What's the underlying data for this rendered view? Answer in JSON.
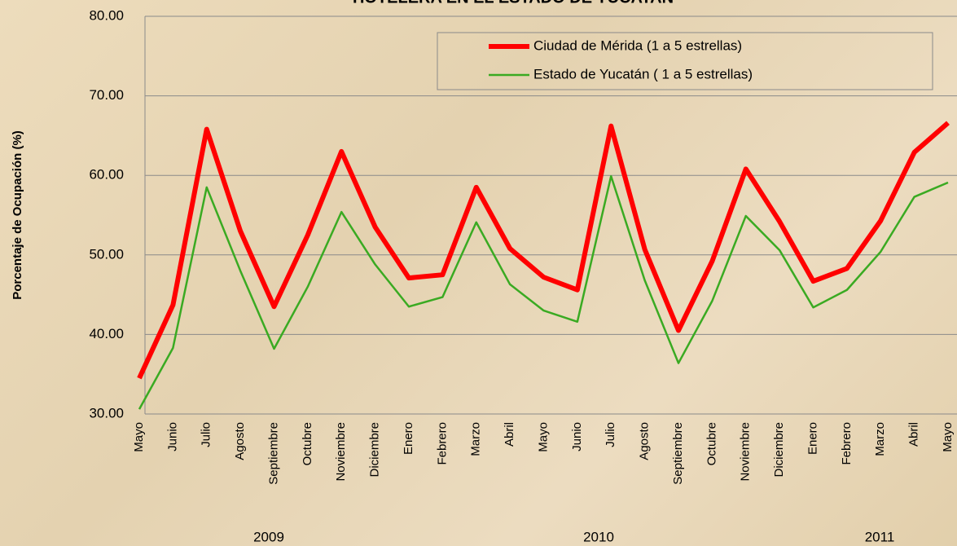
{
  "chart_data": {
    "type": "line",
    "title": "HOTELERA EN EL ESTADO DE YUCATAN",
    "y_label": "Porcentaje de Ocupación (%)",
    "categories": [
      "Mayo",
      "Junio",
      "Julio",
      "Agosto",
      "Septiembre",
      "Octubre",
      "Noviembre",
      "Diciembre",
      "Enero",
      "Febrero",
      "Marzo",
      "Abril",
      "Mayo",
      "Junio",
      "Julio",
      "Agosto",
      "Septiembre",
      "Octubre",
      "Noviembre",
      "Diciembre",
      "Enero",
      "Febrero",
      "Marzo",
      "Abril",
      "Mayo"
    ],
    "year_groups": [
      "2009",
      "2010",
      "2011"
    ],
    "series": [
      {
        "name": "Ciudad de Mérida (1 a 5 estrellas)",
        "color": "#ff0000",
        "width": 6,
        "values": [
          34.5,
          43.7,
          65.8,
          53.0,
          43.5,
          52.5,
          63.0,
          53.5,
          47.1,
          47.5,
          58.5,
          50.8,
          47.2,
          45.6,
          66.2,
          50.7,
          40.5,
          49.2,
          60.8,
          54.2,
          46.7,
          48.3,
          54.3,
          62.9,
          66.6
        ]
      },
      {
        "name": "Estado de Yucatán ( 1 a 5 estrellas)",
        "color": "#3aaa22",
        "width": 2.5,
        "values": [
          30.6,
          38.3,
          58.5,
          48.0,
          38.2,
          46.0,
          55.4,
          48.8,
          43.5,
          44.7,
          54.1,
          46.3,
          43.0,
          41.6,
          59.9,
          46.8,
          36.4,
          44.2,
          54.9,
          50.6,
          43.4,
          45.6,
          50.4,
          57.3,
          59.1
        ]
      }
    ],
    "ylim": [
      30,
      80
    ],
    "yticks": [
      {
        "value": 30,
        "label": "30.00"
      },
      {
        "value": 40,
        "label": "40.00"
      },
      {
        "value": 50,
        "label": "50.00"
      },
      {
        "value": 60,
        "label": "60.00"
      },
      {
        "value": 70,
        "label": "70.00"
      },
      {
        "value": 80,
        "label": "80.00"
      }
    ],
    "grid": true
  }
}
